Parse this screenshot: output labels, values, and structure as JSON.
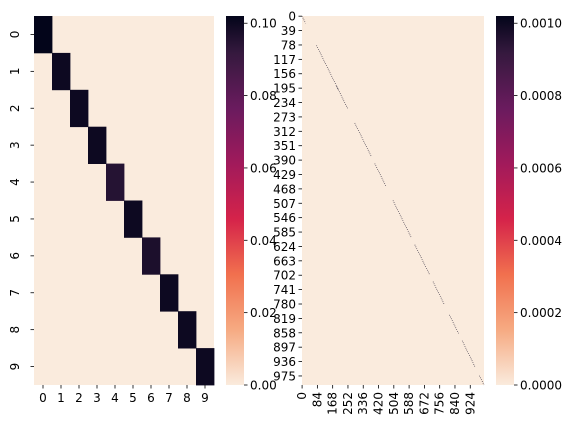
{
  "chart_data": [
    {
      "type": "heatmap",
      "rows": 10,
      "cols": 10,
      "x_tick_labels": [
        "0",
        "1",
        "2",
        "3",
        "4",
        "5",
        "6",
        "7",
        "8",
        "9"
      ],
      "y_tick_labels": [
        "0",
        "1",
        "2",
        "3",
        "4",
        "5",
        "6",
        "7",
        "8",
        "9"
      ],
      "diagonal_values": [
        0.102,
        0.1,
        0.1,
        0.1,
        0.095,
        0.1,
        0.097,
        0.1,
        0.1,
        0.1
      ],
      "off_diagonal_value": 0.0,
      "colorbar": {
        "min": 0.0,
        "max": 0.102,
        "tick_values": [
          0.0,
          0.02,
          0.04,
          0.06,
          0.08,
          0.1
        ],
        "tick_labels": [
          "0.00",
          "0.02",
          "0.04",
          "0.06",
          "0.08",
          "0.10"
        ],
        "colormap": "rocket_r"
      }
    },
    {
      "type": "heatmap",
      "rows": 1000,
      "cols": 1000,
      "x_tick_labels": [
        "0",
        "84",
        "168",
        "252",
        "336",
        "420",
        "504",
        "588",
        "672",
        "756",
        "840",
        "924"
      ],
      "x_tick_values": [
        0,
        84,
        168,
        252,
        336,
        420,
        504,
        588,
        672,
        756,
        840,
        924
      ],
      "y_tick_labels": [
        "0",
        "39",
        "78",
        "117",
        "156",
        "195",
        "234",
        "273",
        "312",
        "351",
        "390",
        "429",
        "468",
        "507",
        "546",
        "585",
        "624",
        "663",
        "702",
        "741",
        "780",
        "819",
        "858",
        "897",
        "936",
        "975"
      ],
      "y_tick_values": [
        0,
        39,
        78,
        117,
        156,
        195,
        234,
        273,
        312,
        351,
        390,
        429,
        468,
        507,
        546,
        585,
        624,
        663,
        702,
        741,
        780,
        819,
        858,
        897,
        936,
        975
      ],
      "diagonal_value": 0.001,
      "off_diagonal_value": 0.0,
      "diagonal_segments": [
        [
          0,
          20
        ],
        [
          80,
          200
        ],
        [
          190,
          250
        ],
        [
          290,
          380
        ],
        [
          400,
          460
        ],
        [
          500,
          600
        ],
        [
          620,
          700
        ],
        [
          720,
          780
        ],
        [
          810,
          860
        ],
        [
          880,
          950
        ],
        [
          975,
          1000
        ]
      ],
      "colorbar": {
        "min": 0.0,
        "max": 0.00102,
        "tick_values": [
          0.0,
          0.0002,
          0.0004,
          0.0006,
          0.0008,
          0.001
        ],
        "tick_labels": [
          "0.0000",
          "0.0002",
          "0.0004",
          "0.0006",
          "0.0008",
          "0.0010"
        ],
        "colormap": "rocket_r"
      }
    }
  ]
}
